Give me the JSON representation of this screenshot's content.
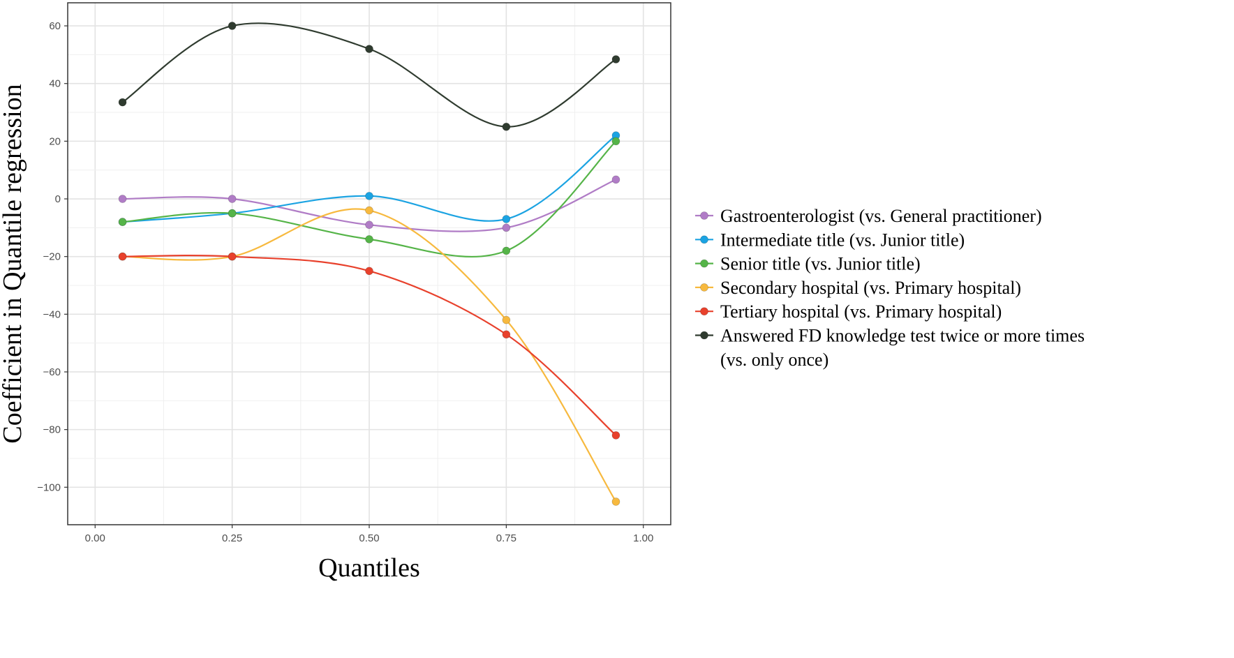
{
  "chart_data": {
    "type": "line",
    "title": "",
    "xlabel": "Quantiles",
    "ylabel": "Coefficient in Quantile regression",
    "xlim": [
      -0.05,
      1.05
    ],
    "ylim": [
      -113,
      68
    ],
    "x_ticks": [
      0.0,
      0.25,
      0.5,
      0.75,
      1.0
    ],
    "x_tick_labels": [
      "0.00",
      "0.25",
      "0.50",
      "0.75",
      "1.00"
    ],
    "y_ticks": [
      60,
      40,
      20,
      0,
      -20,
      -40,
      -60,
      -80,
      -100
    ],
    "y_tick_labels": [
      "60",
      "40",
      "20",
      "0",
      "−20",
      "−40",
      "−60",
      "−80",
      "−100"
    ],
    "x": [
      0.05,
      0.25,
      0.5,
      0.75,
      0.95
    ],
    "grid": true,
    "legend_position": "right",
    "series": [
      {
        "name": "Gastroenterologist (vs. General practitioner)",
        "color": "#b07cc6",
        "values": [
          0,
          0,
          -9,
          -10,
          6.7
        ]
      },
      {
        "name": "Intermediate title (vs. Junior title)",
        "color": "#1ba3e2",
        "values": [
          -8,
          -5,
          1,
          -7,
          22
        ]
      },
      {
        "name": "Senior title (vs. Junior title)",
        "color": "#55b448",
        "values": [
          -8,
          -5,
          -14,
          -18,
          20
        ]
      },
      {
        "name": "Secondary hospital (vs. Primary hospital)",
        "color": "#f7b93e",
        "values": [
          -20,
          -20,
          -4,
          -42,
          -105
        ]
      },
      {
        "name": "Tertiary hospital (vs. Primary hospital)",
        "color": "#e8412c",
        "values": [
          -20,
          -20,
          -25,
          -47,
          -82
        ]
      },
      {
        "name": "Answered FD knowledge test twice or more times (vs. only once)",
        "legend_lines": [
          "Answered FD knowledge test twice or more times",
          "(vs. only once)"
        ],
        "color": "#2f3b2f",
        "values": [
          33.5,
          60,
          52,
          25,
          48.4
        ]
      }
    ]
  }
}
